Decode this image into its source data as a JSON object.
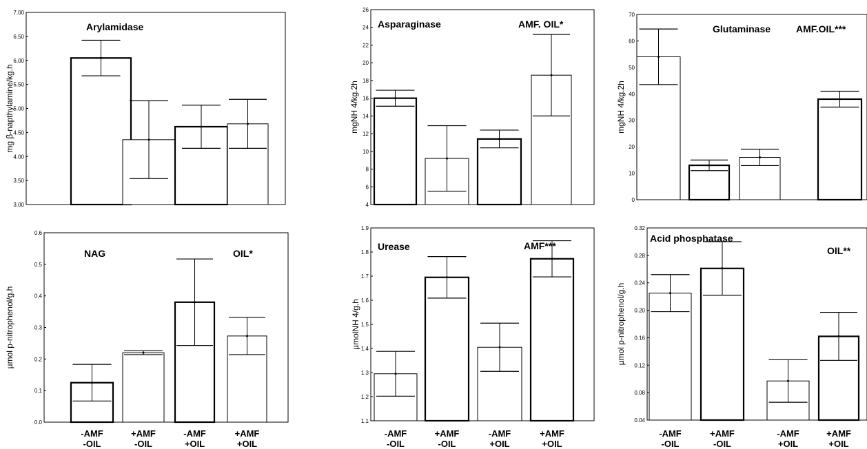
{
  "chart_data": [
    {
      "type": "bar",
      "title": "Arylamidase",
      "annotation": "",
      "ylabel": "mg β-napthylamine/kg.h",
      "ylim": [
        3.0,
        7.0
      ],
      "yticks": [
        "3.00",
        "3.50",
        "4.00",
        "4.50",
        "5.00",
        "5.50",
        "6.00",
        "6.50",
        "7.00"
      ],
      "categories": [
        "-AMF -OIL",
        "+AMF -OIL",
        "-AMF +OIL",
        "+AMF +OIL"
      ],
      "values": [
        6.05,
        4.35,
        4.62,
        4.68
      ],
      "errors": [
        0.37,
        0.81,
        0.45,
        0.51
      ],
      "bold_bars": [
        true,
        false,
        true,
        false
      ],
      "x_labels_shown": false,
      "grid": false
    },
    {
      "type": "bar",
      "title": "Asparaginase",
      "annotation": "AMF. OIL*",
      "ylabel": "mgNH 4/kg.2h",
      "ylim": [
        4,
        26
      ],
      "yticks": [
        "4",
        "6",
        "8",
        "10",
        "12",
        "14",
        "16",
        "18",
        "20",
        "22",
        "24",
        "26"
      ],
      "categories": [
        "-AMF -OIL",
        "+AMF -OIL",
        "-AMF +OIL",
        "+AMF +OIL"
      ],
      "values": [
        16.0,
        9.2,
        11.4,
        18.6
      ],
      "errors": [
        0.9,
        3.7,
        1.0,
        4.6
      ],
      "bold_bars": [
        true,
        false,
        true,
        false
      ],
      "x_labels_shown": false,
      "grid": false
    },
    {
      "type": "bar",
      "title": "Glutaminase",
      "annotation": "AMF.OIL***",
      "ylabel": "mgNH 4/kg.2h",
      "ylim": [
        0,
        70
      ],
      "yticks": [
        "0",
        "10",
        "20",
        "30",
        "40",
        "50",
        "60",
        "70"
      ],
      "categories": [
        "-AMF -OIL",
        "+AMF -OIL",
        "-AMF +OIL",
        "+AMF +OIL"
      ],
      "values": [
        54.0,
        13.0,
        16.0,
        38.0
      ],
      "errors": [
        10.5,
        2.0,
        3.1,
        3.0
      ],
      "bold_bars": [
        false,
        true,
        false,
        true
      ],
      "x_labels_shown": false,
      "grid": false
    },
    {
      "type": "bar",
      "title": "NAG",
      "annotation": "OIL*",
      "ylabel": "µmol p-nitrophenol/g.h",
      "ylim": [
        0.0,
        0.6
      ],
      "yticks": [
        "0.0",
        "0.1",
        "0.2",
        "0.3",
        "0.4",
        "0.5",
        "0.6"
      ],
      "categories": [
        "-AMF -OIL",
        "+AMF -OIL",
        "-AMF +OIL",
        "+AMF +OIL"
      ],
      "values": [
        0.125,
        0.22,
        0.38,
        0.273
      ],
      "errors": [
        0.058,
        0.006,
        0.137,
        0.059
      ],
      "bold_bars": [
        true,
        false,
        true,
        false
      ],
      "x_labels_shown": true,
      "grid": false
    },
    {
      "type": "bar",
      "title": "Urease",
      "annotation": "AMF***",
      "ylabel": "µmolNH 4/g.h",
      "ylim": [
        1.1,
        1.9
      ],
      "yticks": [
        "1.1",
        "1.2",
        "1.3",
        "1.4",
        "1.5",
        "1.6",
        "1.7",
        "1.8",
        "1.9"
      ],
      "categories": [
        "-AMF -OIL",
        "+AMF -OIL",
        "-AMF +OIL",
        "+AMF +OIL"
      ],
      "values": [
        1.295,
        1.695,
        1.405,
        1.772
      ],
      "errors": [
        0.093,
        0.086,
        0.1,
        0.075
      ],
      "bold_bars": [
        false,
        true,
        false,
        true
      ],
      "x_labels_shown": true,
      "grid": false
    },
    {
      "type": "bar",
      "title": "Acid phosphatase",
      "annotation": "OIL**",
      "ylabel": "µmol p-nitrophenol/g.h",
      "ylim": [
        0.04,
        0.32
      ],
      "yticks": [
        "0.04",
        "0.08",
        "0.12",
        "0.16",
        "0.20",
        "0.24",
        "0.28",
        "0.32"
      ],
      "categories": [
        "-AMF -OIL",
        "+AMF -OIL",
        "-AMF +OIL",
        "+AMF +OIL"
      ],
      "values": [
        0.225,
        0.261,
        0.097,
        0.162
      ],
      "errors": [
        0.027,
        0.039,
        0.031,
        0.035
      ],
      "bold_bars": [
        false,
        true,
        false,
        true
      ],
      "x_labels_shown": true,
      "grid": false
    }
  ]
}
